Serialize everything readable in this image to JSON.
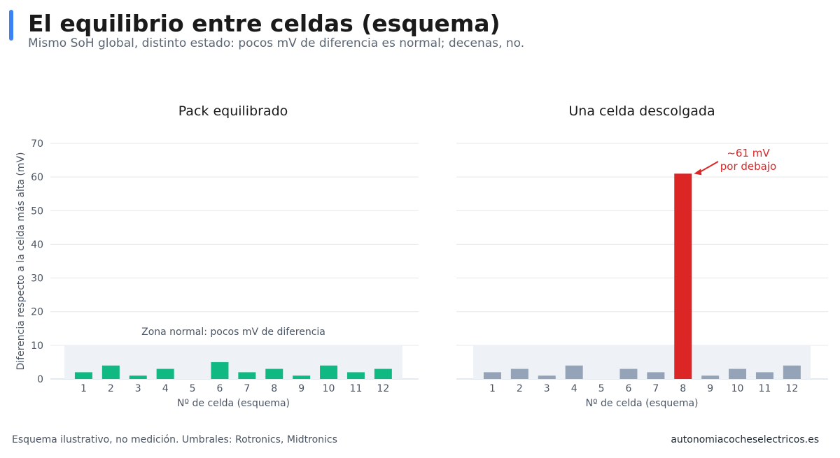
{
  "header": {
    "title": "El equilibrio entre celdas (esquema)",
    "subtitle": "Mismo SoH global, distinto estado: pocos mV de diferencia es normal; decenas, no."
  },
  "footer": {
    "source": "Esquema ilustrativo, no medición. Umbrales: Rotronics, Midtronics",
    "site": "autonomiacocheselectricos.es"
  },
  "colors": {
    "accent": "#3b82f6",
    "balanced": "#10b981",
    "normal_cell": "#94a3b8",
    "outlier": "#dc2626",
    "zone": "#eef2f6"
  },
  "chart_data": [
    {
      "type": "bar",
      "title": "Pack equilibrado",
      "xlabel": "Nº de celda (esquema)",
      "ylabel": "Diferencia respecto a la celda más alta (mV)",
      "categories": [
        "1",
        "2",
        "3",
        "4",
        "5",
        "6",
        "7",
        "8",
        "9",
        "10",
        "11",
        "12"
      ],
      "values": [
        2,
        4,
        1,
        3,
        0,
        5,
        2,
        3,
        1,
        4,
        2,
        3
      ],
      "ylim": [
        0,
        70
      ],
      "yticks": [
        0,
        10,
        20,
        30,
        40,
        50,
        60,
        70
      ],
      "grid": true,
      "zone": {
        "from": 0,
        "to": 10,
        "label": "Zona normal: pocos mV de diferencia"
      }
    },
    {
      "type": "bar",
      "title": "Una celda descolgada",
      "xlabel": "Nº de celda (esquema)",
      "ylabel": "",
      "categories": [
        "1",
        "2",
        "3",
        "4",
        "5",
        "6",
        "7",
        "8",
        "9",
        "10",
        "11",
        "12"
      ],
      "values": [
        2,
        3,
        1,
        4,
        0,
        3,
        2,
        61,
        1,
        3,
        2,
        4
      ],
      "ylim": [
        0,
        70
      ],
      "yticks": [
        0,
        10,
        20,
        30,
        40,
        50,
        60,
        70
      ],
      "grid": true,
      "zone": {
        "from": 0,
        "to": 10,
        "label": ""
      },
      "highlight_index": 7,
      "annotation": {
        "lines": [
          "~61 mV",
          "por debajo"
        ],
        "target_index": 7,
        "target_value": 61
      }
    }
  ]
}
